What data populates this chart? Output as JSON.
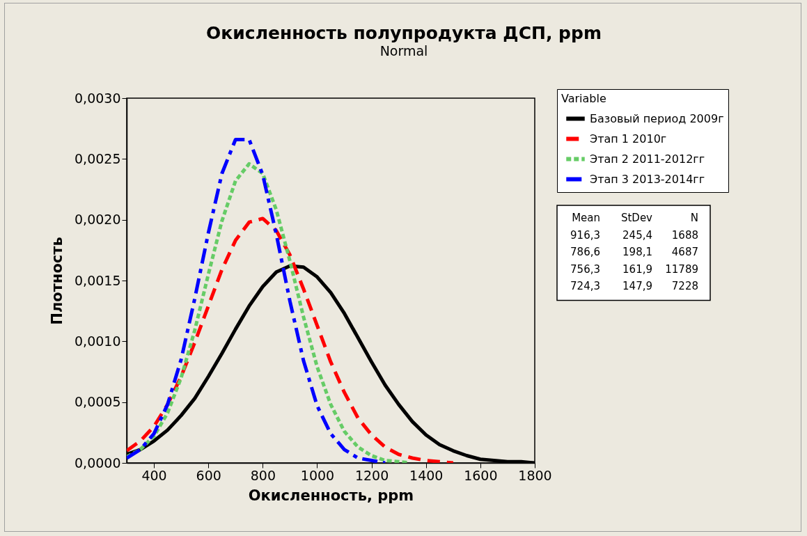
{
  "chart_data": {
    "type": "line",
    "title": "Окисленность полупродукта ДСП, ppm",
    "subtitle": "Normal",
    "xlabel": "Окисленность, ppm",
    "ylabel": "Плотность",
    "legend_title": "Variable",
    "xlim": [
      300,
      1800
    ],
    "xticks": [
      400,
      600,
      800,
      1000,
      1200,
      1400,
      1600,
      1800
    ],
    "ylim": [
      0,
      0.003
    ],
    "yticks": [
      {
        "value": 0,
        "label": "0,0000"
      },
      {
        "value": 0.0005,
        "label": "0,0005"
      },
      {
        "value": 0.001,
        "label": "0,0010"
      },
      {
        "value": 0.0015,
        "label": "0,0015"
      },
      {
        "value": 0.002,
        "label": "0,0020"
      },
      {
        "value": 0.0025,
        "label": "0,0025"
      },
      {
        "value": 0.003,
        "label": "0,0030"
      }
    ],
    "grid": false,
    "legend": "right",
    "marker": "none",
    "annotations": [
      "Mean StDev N",
      "916,3 245,4 1688",
      "786,6 198,1 4687",
      "756,3 161,9 11789",
      "724,3 147,9 7228"
    ],
    "series": [
      {
        "name": "Базовый период 2009г",
        "color": "#000000",
        "line_style": "solid",
        "x": [
          300,
          350,
          400,
          450,
          500,
          550,
          600,
          650,
          700,
          750,
          800,
          850,
          900,
          950,
          1000,
          1050,
          1100,
          1150,
          1200,
          1250,
          1300,
          1350,
          1400,
          1450,
          1500,
          1550,
          1600,
          1650,
          1700,
          1750,
          1800
        ],
        "values": [
          7e-05,
          0.00011,
          0.00018,
          0.00027,
          0.00039,
          0.00053,
          0.00071,
          0.0009,
          0.0011,
          0.00129,
          0.00145,
          0.00157,
          0.00162,
          0.00161,
          0.00153,
          0.0014,
          0.00123,
          0.00103,
          0.00083,
          0.00064,
          0.00048,
          0.00034,
          0.00023,
          0.00015,
          0.0001,
          6e-05,
          3e-05,
          2e-05,
          1e-05,
          1e-05,
          0
        ]
      },
      {
        "name": "Этап 1 2010г",
        "color": "#ff0000",
        "line_style": "dashed",
        "x": [
          300,
          350,
          400,
          450,
          500,
          550,
          600,
          650,
          700,
          750,
          800,
          850,
          900,
          950,
          1000,
          1050,
          1100,
          1150,
          1200,
          1250,
          1300,
          1350,
          1400,
          1450,
          1500
        ],
        "values": [
          0.0001,
          0.00018,
          0.0003,
          0.00048,
          0.00071,
          0.00099,
          0.00129,
          0.00159,
          0.00183,
          0.00198,
          0.00201,
          0.00191,
          0.00171,
          0.00143,
          0.00113,
          0.00083,
          0.00058,
          0.00037,
          0.00023,
          0.00013,
          7e-05,
          4e-05,
          2e-05,
          1e-05,
          0
        ]
      },
      {
        "name": "Этап 2 2011-2012гг",
        "color": "#66cc66",
        "line_style": "dotted",
        "x": [
          300,
          350,
          400,
          450,
          500,
          550,
          600,
          650,
          700,
          750,
          800,
          850,
          900,
          950,
          1000,
          1050,
          1100,
          1150,
          1200,
          1250,
          1300,
          1340
        ],
        "values": [
          5e-05,
          0.00011,
          0.00022,
          0.00041,
          0.0007,
          0.00109,
          0.00155,
          0.00199,
          0.00232,
          0.00246,
          0.00238,
          0.00208,
          0.00166,
          0.0012,
          0.00079,
          0.00048,
          0.00026,
          0.00013,
          6e-05,
          2e-05,
          1e-05,
          0
        ]
      },
      {
        "name": "Этап 3 2013-2014гг",
        "color": "#0000ff",
        "line_style": "dashdot",
        "x": [
          300,
          350,
          400,
          450,
          500,
          550,
          600,
          650,
          700,
          750,
          800,
          850,
          900,
          950,
          1000,
          1050,
          1100,
          1150,
          1200,
          1250
        ],
        "values": [
          4e-05,
          0.00011,
          0.00024,
          0.00048,
          0.00085,
          0.00135,
          0.00189,
          0.00238,
          0.00266,
          0.00266,
          0.00237,
          0.00188,
          0.00133,
          0.00084,
          0.00047,
          0.00024,
          0.00011,
          4e-05,
          2e-05,
          0
        ]
      }
    ]
  }
}
